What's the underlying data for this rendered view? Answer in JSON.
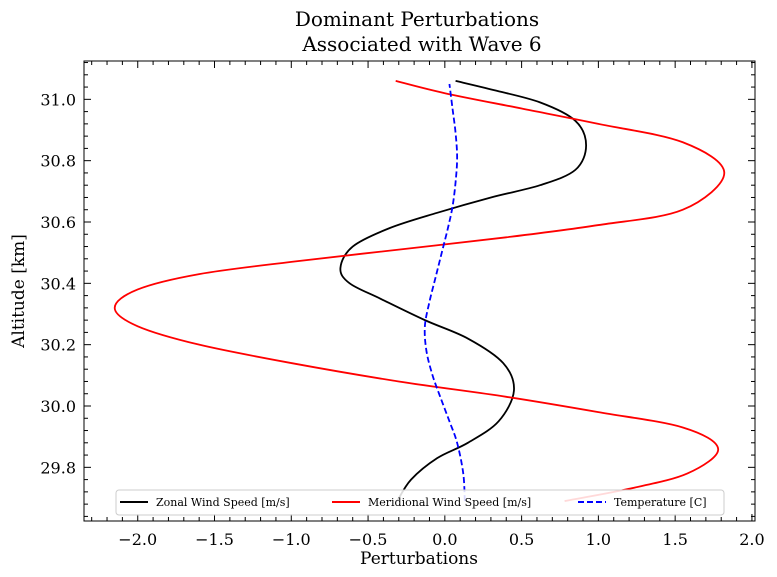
{
  "chart_data": {
    "type": "line",
    "title": "Dominant Perturbations",
    "subtitle": "Associated with Wave 6",
    "xlabel": "Perturbations",
    "ylabel": "Altitude [km]",
    "xlim": [
      -2.35,
      2.02
    ],
    "ylim": [
      29.625,
      31.125
    ],
    "xticks": [
      "−2.0",
      "−1.5",
      "−1.0",
      "−0.5",
      "0.0",
      "0.5",
      "1.0",
      "1.5",
      "2.0"
    ],
    "yticks": [
      "29.8",
      "30.0",
      "30.2",
      "30.4",
      "30.6",
      "30.8",
      "31.0"
    ],
    "grid": false,
    "legend_position": "bottom-center",
    "series": [
      {
        "name": "Zonal Wind Speed [m/s]",
        "color": "#000000",
        "dash": "solid",
        "points": [
          [
            -0.31,
            29.69
          ],
          [
            -0.22,
            29.76
          ],
          [
            -0.05,
            29.83
          ],
          [
            0.15,
            29.88
          ],
          [
            0.35,
            29.95
          ],
          [
            0.45,
            30.05
          ],
          [
            0.38,
            30.14
          ],
          [
            0.15,
            30.22
          ],
          [
            -0.13,
            30.28
          ],
          [
            -0.42,
            30.35
          ],
          [
            -0.62,
            30.4
          ],
          [
            -0.68,
            30.45
          ],
          [
            -0.6,
            30.52
          ],
          [
            -0.36,
            30.58
          ],
          [
            -0.05,
            30.63
          ],
          [
            0.3,
            30.68
          ],
          [
            0.62,
            30.72
          ],
          [
            0.85,
            30.77
          ],
          [
            0.92,
            30.85
          ],
          [
            0.85,
            30.93
          ],
          [
            0.62,
            30.99
          ],
          [
            0.32,
            31.03
          ],
          [
            0.07,
            31.06
          ]
        ]
      },
      {
        "name": "Meridional Wind Speed [m/s]",
        "color": "#ff0000",
        "dash": "solid",
        "points": [
          [
            0.78,
            29.69
          ],
          [
            1.2,
            29.73
          ],
          [
            1.58,
            29.78
          ],
          [
            1.78,
            29.86
          ],
          [
            1.55,
            29.93
          ],
          [
            1.0,
            29.98
          ],
          [
            0.4,
            30.03
          ],
          [
            -0.3,
            30.08
          ],
          [
            -1.0,
            30.14
          ],
          [
            -1.6,
            30.2
          ],
          [
            -2.0,
            30.26
          ],
          [
            -2.15,
            30.32
          ],
          [
            -2.0,
            30.38
          ],
          [
            -1.6,
            30.43
          ],
          [
            -1.0,
            30.47
          ],
          [
            -0.3,
            30.51
          ],
          [
            0.4,
            30.55
          ],
          [
            1.0,
            30.59
          ],
          [
            1.55,
            30.64
          ],
          [
            1.82,
            30.76
          ],
          [
            1.55,
            30.86
          ],
          [
            1.0,
            30.92
          ],
          [
            0.5,
            30.97
          ],
          [
            0.0,
            31.02
          ],
          [
            -0.32,
            31.06
          ]
        ]
      },
      {
        "name": "Temperature [C]",
        "color": "#0000ff",
        "dash": "dashed",
        "points": [
          [
            0.13,
            29.69
          ],
          [
            0.12,
            29.78
          ],
          [
            0.08,
            29.88
          ],
          [
            0.03,
            29.95
          ],
          [
            -0.03,
            30.03
          ],
          [
            -0.08,
            30.1
          ],
          [
            -0.12,
            30.18
          ],
          [
            -0.13,
            30.26
          ],
          [
            -0.1,
            30.34
          ],
          [
            -0.06,
            30.42
          ],
          [
            -0.02,
            30.5
          ],
          [
            0.02,
            30.58
          ],
          [
            0.05,
            30.65
          ],
          [
            0.07,
            30.73
          ],
          [
            0.08,
            30.81
          ],
          [
            0.07,
            30.89
          ],
          [
            0.05,
            30.97
          ],
          [
            0.03,
            31.05
          ]
        ]
      }
    ]
  }
}
